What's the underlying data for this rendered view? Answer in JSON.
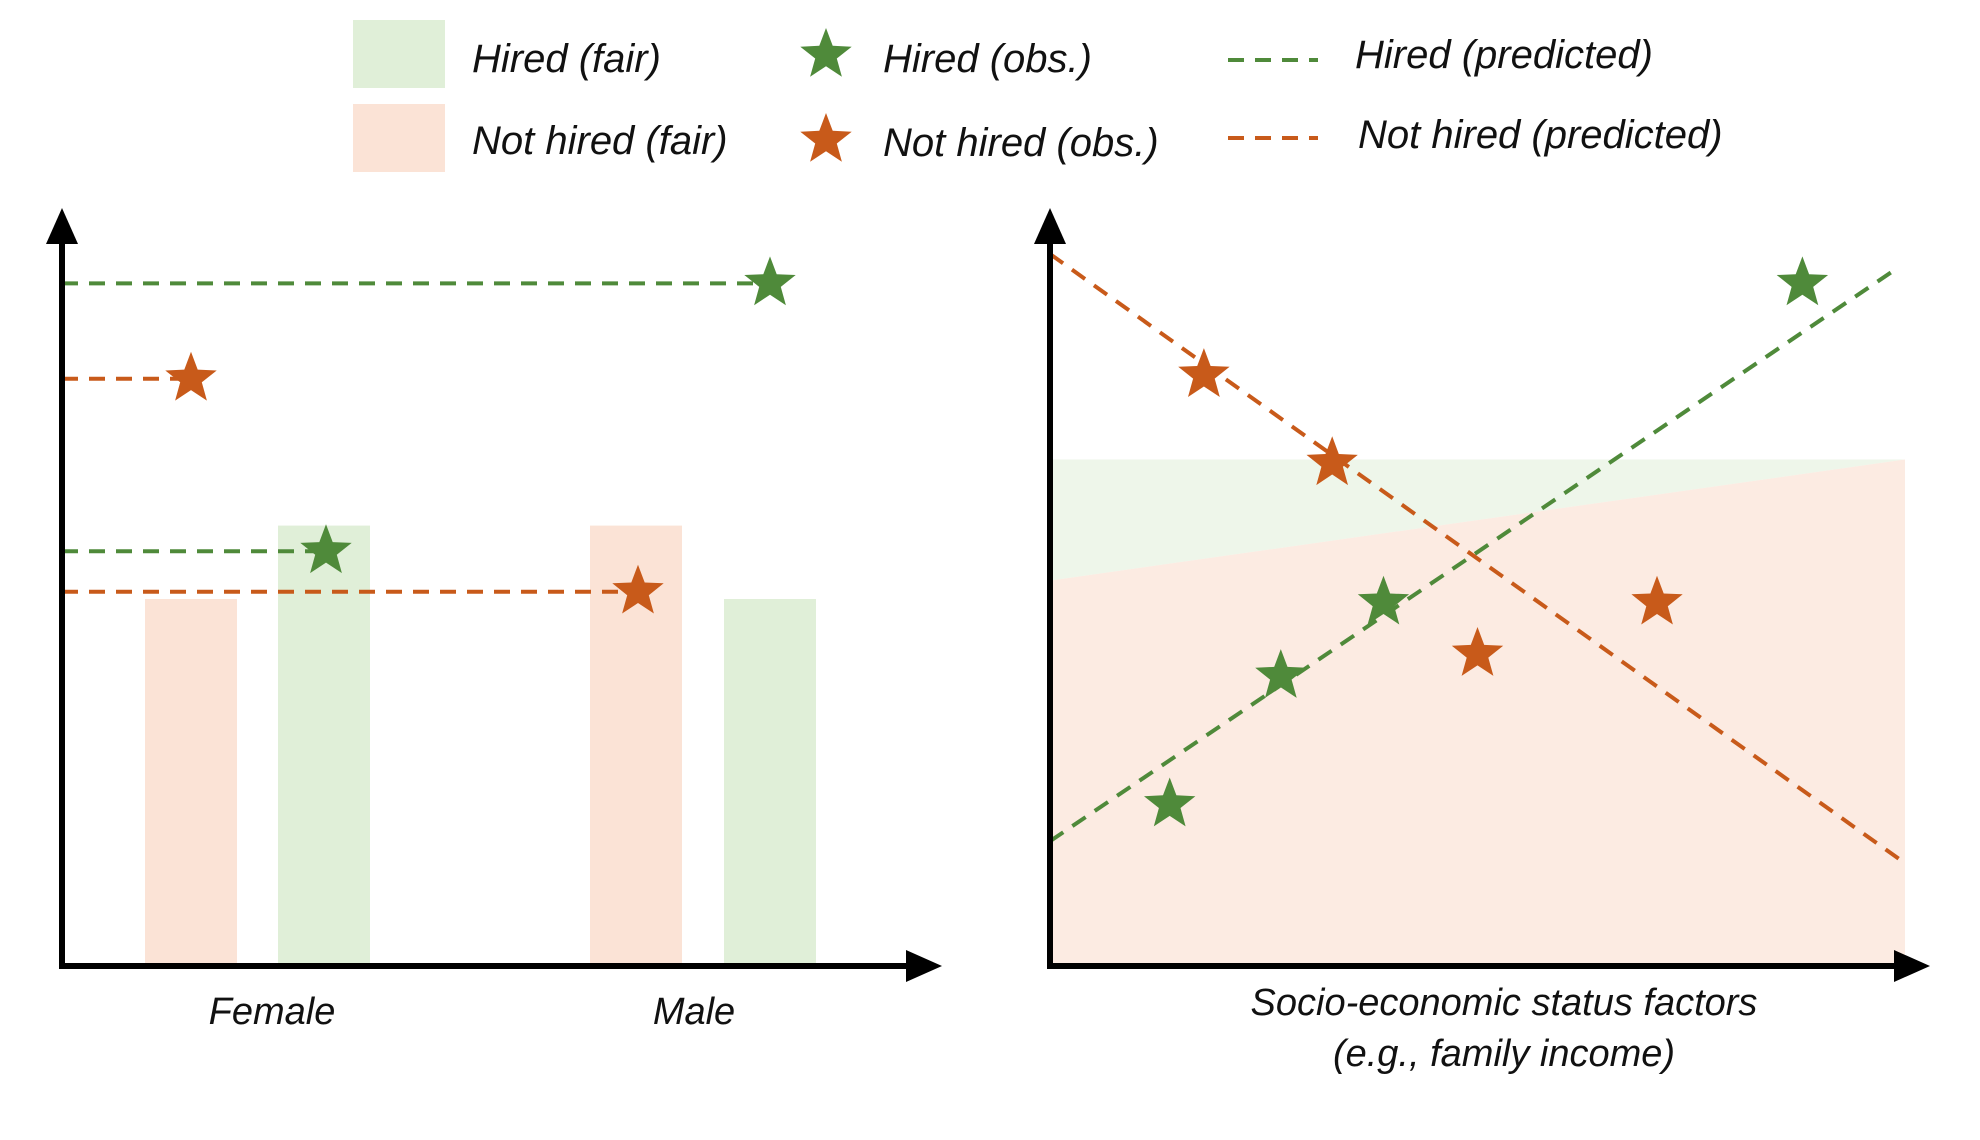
{
  "colors": {
    "hired": "#4f8a3a",
    "not_hired": "#c85a1a",
    "hired_fair_fill": "#e0efd8",
    "not_hired_fair_fill": "#fbe3d6",
    "axis": "#000000"
  },
  "legend": {
    "hired_fair": "Hired (fair)",
    "not_hired_fair": "Not hired (fair)",
    "hired_obs": "Hired (obs.)",
    "not_hired_obs": "Not hired (obs.)",
    "hired_predicted": "Hired (predicted)",
    "not_hired_predicted": "Not hired (predicted)"
  },
  "chart_data": [
    {
      "type": "bar",
      "title": "",
      "xlabel": "",
      "ylabel": "",
      "categories": [
        "Female",
        "Male"
      ],
      "ylim": [
        0,
        100
      ],
      "series": [
        {
          "name": "Not hired (fair)",
          "values": [
            50,
            60
          ]
        },
        {
          "name": "Hired (fair)",
          "values": [
            60,
            50
          ]
        }
      ],
      "observed": [
        {
          "name": "Hired (obs.)",
          "values": [
            56.5,
            93
          ]
        },
        {
          "name": "Not hired (obs.)",
          "values": [
            80,
            51
          ]
        }
      ]
    },
    {
      "type": "scatter",
      "title": "",
      "xlabel": "Socio-economic status factors",
      "xlabel_line2": "(e.g., family income)",
      "ylabel": "",
      "xlim": [
        0,
        100
      ],
      "ylim": [
        0,
        100
      ],
      "hired_obs": {
        "x": [
          14,
          27,
          39,
          88
        ],
        "y": [
          22,
          39.5,
          49.5,
          93
        ]
      },
      "not_hired_obs": {
        "x": [
          18,
          33,
          50,
          71
        ],
        "y": [
          80.5,
          68.5,
          42.5,
          49.5
        ]
      },
      "hired_predicted_line": {
        "x": [
          0,
          99
        ],
        "y": [
          17,
          95
        ]
      },
      "not_hired_predicted_line": {
        "x": [
          0,
          100
        ],
        "y": [
          97,
          14
        ]
      },
      "hired_fair_band": {
        "x": [
          0,
          100
        ],
        "upper": [
          69,
          69
        ],
        "lower": [
          52.5,
          69
        ]
      },
      "not_hired_fair_band": {
        "x": [
          0,
          100
        ],
        "upper": [
          52.5,
          69
        ],
        "lower": [
          0,
          0
        ]
      }
    }
  ]
}
